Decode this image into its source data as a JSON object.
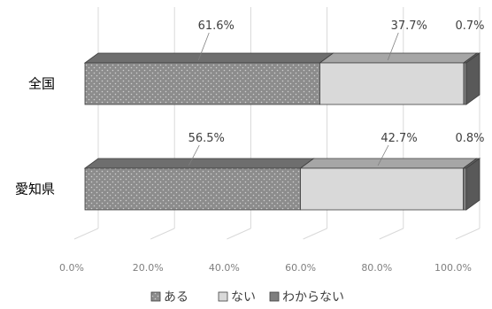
{
  "chart_data": {
    "type": "bar",
    "orientation": "horizontal",
    "stacked": "100%",
    "categories": [
      "全国",
      "愛知県"
    ],
    "series": [
      {
        "name": "ある",
        "values": [
          61.6,
          56.5
        ],
        "color": "#8c8c8c",
        "pattern": "dotted"
      },
      {
        "name": "ない",
        "values": [
          37.7,
          42.7
        ],
        "color": "#d9d9d9"
      },
      {
        "name": "わからない",
        "values": [
          0.7,
          0.8
        ],
        "color": "#7f7f7f"
      }
    ],
    "data_labels": [
      [
        "61.6%",
        "56.5%"
      ],
      [
        "37.7%",
        "42.7%"
      ],
      [
        "0.7%",
        "0.8%"
      ]
    ],
    "x_ticks": [
      "0.0%",
      "20.0%",
      "40.0%",
      "60.0%",
      "80.0%",
      "100.0%"
    ],
    "xlim": [
      0,
      100
    ],
    "grid": true,
    "style": "3d",
    "legend_position": "bottom",
    "title": "",
    "xlabel": "",
    "ylabel": ""
  }
}
